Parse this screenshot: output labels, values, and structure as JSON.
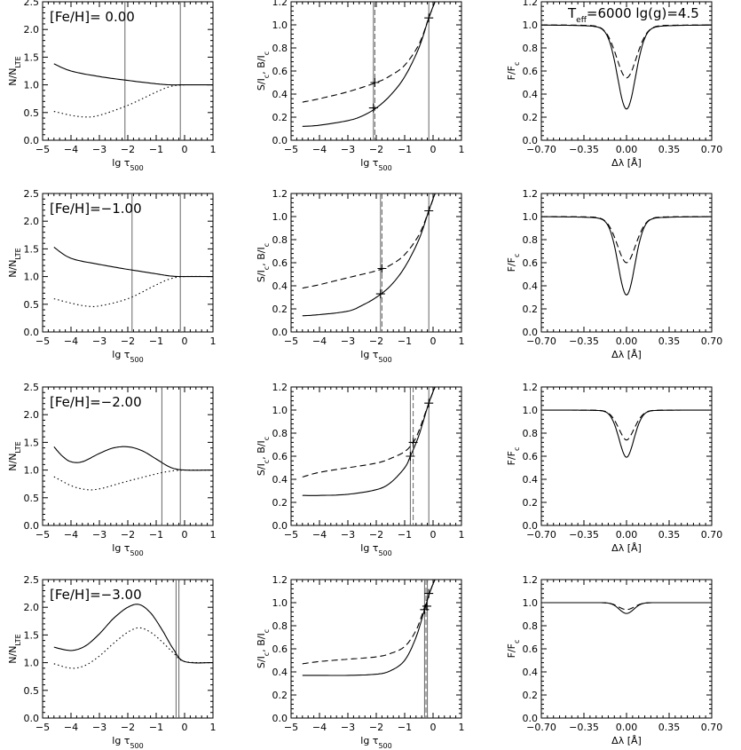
{
  "figure": {
    "top_label": "T_eff=6000  lg(g)=4.5"
  },
  "chart_data": [
    {
      "type": "line",
      "panel": "N/NLTE vs lg tau500",
      "annotation": "[Fe/H]= 0.00",
      "xlabel": "lg τ500",
      "ylabel": "N/N_LTE",
      "xlim": [
        -5,
        1
      ],
      "ylim": [
        0,
        2.5
      ],
      "xticks": [
        "-5",
        "-4",
        "-3",
        "-2",
        "-1",
        "0",
        "1"
      ],
      "yticks": [
        "0.0",
        "0.5",
        "1.0",
        "1.5",
        "2.0",
        "2.5"
      ],
      "vlines": [
        -2.1,
        -0.15
      ],
      "series": [
        {
          "style": "solid",
          "x": [
            -4.6,
            -4.0,
            -3.0,
            -2.0,
            -1.0,
            -0.5,
            0.0,
            1.0
          ],
          "y": [
            1.38,
            1.25,
            1.15,
            1.08,
            1.02,
            1.0,
            1.0,
            1.0
          ]
        },
        {
          "style": "dotted",
          "x": [
            -4.6,
            -4.0,
            -3.5,
            -3.0,
            -2.0,
            -1.0,
            -0.5,
            0.0,
            1.0
          ],
          "y": [
            0.52,
            0.45,
            0.42,
            0.45,
            0.63,
            0.87,
            0.97,
            1.0,
            1.0
          ]
        }
      ]
    },
    {
      "type": "line",
      "panel": "source function vs lg tau500",
      "xlabel": "lg τ500",
      "ylabel": "S/I_c, B/I_c",
      "xlim": [
        -5,
        1
      ],
      "ylim": [
        0,
        1.2
      ],
      "xticks": [
        "-5",
        "-4",
        "-3",
        "-2",
        "-1",
        "0",
        "1"
      ],
      "yticks": [
        "0.0",
        "0.2",
        "0.4",
        "0.6",
        "0.8",
        "1.0",
        "1.2"
      ],
      "vlines": [
        -2.1,
        -0.15
      ],
      "dashed_vlines": [
        -2.05
      ],
      "markers": [
        {
          "x": -2.1,
          "y": 0.28
        },
        {
          "x": -2.05,
          "y": 0.5
        },
        {
          "x": -0.15,
          "y": 1.06
        }
      ],
      "series": [
        {
          "style": "solid",
          "x": [
            -4.6,
            -4.0,
            -3.0,
            -2.5,
            -2.0,
            -1.5,
            -1.0,
            -0.5,
            -0.15,
            0.1
          ],
          "y": [
            0.12,
            0.13,
            0.17,
            0.21,
            0.28,
            0.39,
            0.55,
            0.8,
            1.06,
            1.22
          ]
        },
        {
          "style": "dashed",
          "x": [
            -4.6,
            -4.0,
            -3.0,
            -2.0,
            -1.5,
            -1.0,
            -0.5,
            -0.15,
            0.1
          ],
          "y": [
            0.33,
            0.36,
            0.42,
            0.5,
            0.56,
            0.65,
            0.83,
            1.06,
            1.22
          ]
        }
      ]
    },
    {
      "type": "line",
      "panel": "line profile F/Fc vs delta lambda",
      "xlabel": "Δλ [Å]",
      "ylabel": "F/F_c",
      "xlim": [
        -0.7,
        0.7
      ],
      "ylim": [
        0,
        1.2
      ],
      "xticks": [
        "-0.70",
        "-0.35",
        "0.00",
        "0.35",
        "0.70"
      ],
      "yticks": [
        "0.0",
        "0.2",
        "0.4",
        "0.6",
        "0.8",
        "1.0",
        "1.2"
      ],
      "series": [
        {
          "style": "solid",
          "profile": {
            "depth": 0.73,
            "core": 0.075,
            "wing": 0.009
          }
        },
        {
          "style": "dashed",
          "profile": {
            "depth": 0.46,
            "core": 0.085,
            "wing": 0.007
          }
        }
      ]
    },
    {
      "type": "line",
      "panel": "N/NLTE vs lg tau500",
      "annotation": "[Fe/H]=-1.00",
      "xlabel": "lg τ500",
      "ylabel": "N/N_LTE",
      "xlim": [
        -5,
        1
      ],
      "ylim": [
        0,
        2.5
      ],
      "xticks": [
        "-5",
        "-4",
        "-3",
        "-2",
        "-1",
        "0",
        "1"
      ],
      "yticks": [
        "0.0",
        "0.5",
        "1.0",
        "1.5",
        "2.0",
        "2.5"
      ],
      "vlines": [
        -1.85,
        -0.15
      ],
      "series": [
        {
          "style": "solid",
          "x": [
            -4.6,
            -4.0,
            -3.0,
            -2.0,
            -1.0,
            -0.5,
            0.0,
            1.0
          ],
          "y": [
            1.53,
            1.33,
            1.22,
            1.13,
            1.05,
            1.01,
            1.0,
            1.0
          ]
        },
        {
          "style": "dotted",
          "x": [
            -4.6,
            -4.0,
            -3.5,
            -3.0,
            -2.0,
            -1.0,
            -0.5,
            0.0,
            1.0
          ],
          "y": [
            0.6,
            0.52,
            0.47,
            0.47,
            0.6,
            0.85,
            0.96,
            1.0,
            1.0
          ]
        }
      ]
    },
    {
      "type": "line",
      "panel": "source function vs lg tau500",
      "xlabel": "lg τ500",
      "ylabel": "S/I_c, B/I_c",
      "xlim": [
        -5,
        1
      ],
      "ylim": [
        0,
        1.2
      ],
      "xticks": [
        "-5",
        "-4",
        "-3",
        "-2",
        "-1",
        "0",
        "1"
      ],
      "yticks": [
        "0.0",
        "0.2",
        "0.4",
        "0.6",
        "0.8",
        "1.0",
        "1.2"
      ],
      "vlines": [
        -1.85,
        -0.15
      ],
      "dashed_vlines": [
        -1.8
      ],
      "markers": [
        {
          "x": -1.85,
          "y": 0.33
        },
        {
          "x": -1.8,
          "y": 0.55
        },
        {
          "x": -0.15,
          "y": 1.05
        }
      ],
      "series": [
        {
          "style": "solid",
          "x": [
            -4.6,
            -4.0,
            -3.0,
            -2.5,
            -2.0,
            -1.5,
            -1.0,
            -0.5,
            -0.15,
            0.1
          ],
          "y": [
            0.14,
            0.15,
            0.18,
            0.23,
            0.3,
            0.4,
            0.56,
            0.8,
            1.05,
            1.22
          ]
        },
        {
          "style": "dashed",
          "x": [
            -4.6,
            -4.0,
            -3.0,
            -2.0,
            -1.5,
            -1.0,
            -0.5,
            -0.15,
            0.1
          ],
          "y": [
            0.38,
            0.41,
            0.47,
            0.53,
            0.58,
            0.67,
            0.84,
            1.05,
            1.22
          ]
        }
      ]
    },
    {
      "type": "line",
      "panel": "line profile F/Fc vs delta lambda",
      "xlabel": "Δλ [Å]",
      "ylabel": "F/F_c",
      "xlim": [
        -0.7,
        0.7
      ],
      "ylim": [
        0,
        1.2
      ],
      "xticks": [
        "-0.70",
        "-0.35",
        "0.00",
        "0.35",
        "0.70"
      ],
      "yticks": [
        "0.0",
        "0.2",
        "0.4",
        "0.6",
        "0.8",
        "1.0",
        "1.2"
      ],
      "series": [
        {
          "style": "solid",
          "profile": {
            "depth": 0.68,
            "core": 0.07,
            "wing": 0.007
          }
        },
        {
          "style": "dashed",
          "profile": {
            "depth": 0.4,
            "core": 0.08,
            "wing": 0.005
          }
        }
      ]
    },
    {
      "type": "line",
      "panel": "N/NLTE vs lg tau500",
      "annotation": "[Fe/H]=-2.00",
      "xlabel": "lg τ500",
      "ylabel": "N/N_LTE",
      "xlim": [
        -5,
        1
      ],
      "ylim": [
        0,
        2.5
      ],
      "xticks": [
        "-5",
        "-4",
        "-3",
        "-2",
        "-1",
        "0",
        "1"
      ],
      "yticks": [
        "0.0",
        "0.5",
        "1.0",
        "1.5",
        "2.0",
        "2.5"
      ],
      "vlines": [
        -0.8,
        -0.15
      ],
      "series": [
        {
          "style": "solid",
          "x": [
            -4.6,
            -4.3,
            -4.0,
            -3.6,
            -3.0,
            -2.5,
            -2.0,
            -1.5,
            -1.0,
            -0.5,
            0.0,
            1.0
          ],
          "y": [
            1.42,
            1.25,
            1.15,
            1.15,
            1.3,
            1.4,
            1.42,
            1.35,
            1.2,
            1.05,
            1.0,
            1.0
          ]
        },
        {
          "style": "dotted",
          "x": [
            -4.6,
            -4.0,
            -3.5,
            -3.0,
            -2.0,
            -1.0,
            -0.5,
            0.0,
            1.0
          ],
          "y": [
            0.88,
            0.72,
            0.65,
            0.66,
            0.8,
            0.93,
            0.98,
            1.0,
            1.0
          ]
        }
      ]
    },
    {
      "type": "line",
      "panel": "source function vs lg tau500",
      "xlabel": "lg τ500",
      "ylabel": "S/I_c, B/I_c",
      "xlim": [
        -5,
        1
      ],
      "ylim": [
        0,
        1.2
      ],
      "xticks": [
        "-5",
        "-4",
        "-3",
        "-2",
        "-1",
        "0",
        "1"
      ],
      "yticks": [
        "0.0",
        "0.2",
        "0.4",
        "0.6",
        "0.8",
        "1.0",
        "1.2"
      ],
      "vlines": [
        -0.8,
        -0.15
      ],
      "dashed_vlines": [
        -0.7
      ],
      "markers": [
        {
          "x": -0.8,
          "y": 0.6
        },
        {
          "x": -0.7,
          "y": 0.72
        },
        {
          "x": -0.15,
          "y": 1.06
        }
      ],
      "series": [
        {
          "style": "solid",
          "x": [
            -4.6,
            -4.0,
            -3.0,
            -2.0,
            -1.5,
            -1.0,
            -0.8,
            -0.5,
            -0.15,
            0.1
          ],
          "y": [
            0.26,
            0.26,
            0.27,
            0.31,
            0.37,
            0.5,
            0.6,
            0.78,
            1.06,
            1.22
          ]
        },
        {
          "style": "dashed",
          "x": [
            -4.6,
            -4.0,
            -3.0,
            -2.0,
            -1.5,
            -1.0,
            -0.7,
            -0.5,
            -0.15,
            0.1
          ],
          "y": [
            0.42,
            0.46,
            0.5,
            0.54,
            0.58,
            0.64,
            0.72,
            0.82,
            1.06,
            1.22
          ]
        }
      ]
    },
    {
      "type": "line",
      "panel": "line profile F/Fc vs delta lambda",
      "xlabel": "Δλ [Å]",
      "ylabel": "F/F_c",
      "xlim": [
        -0.7,
        0.7
      ],
      "ylim": [
        0,
        1.2
      ],
      "xticks": [
        "-0.70",
        "-0.35",
        "0.00",
        "0.35",
        "0.70"
      ],
      "yticks": [
        "0.0",
        "0.2",
        "0.4",
        "0.6",
        "0.8",
        "1.0",
        "1.2"
      ],
      "series": [
        {
          "style": "solid",
          "profile": {
            "depth": 0.41,
            "core": 0.065,
            "wing": 0.003
          }
        },
        {
          "style": "dashed",
          "profile": {
            "depth": 0.26,
            "core": 0.07,
            "wing": 0.002
          }
        }
      ]
    },
    {
      "type": "line",
      "panel": "N/NLTE vs lg tau500",
      "annotation": "[Fe/H]=-3.00",
      "xlabel": "lg τ500",
      "ylabel": "N/N_LTE",
      "xlim": [
        -5,
        1
      ],
      "ylim": [
        0,
        2.5
      ],
      "xticks": [
        "-5",
        "-4",
        "-3",
        "-2",
        "-1",
        "0",
        "1"
      ],
      "yticks": [
        "0.0",
        "0.5",
        "1.0",
        "1.5",
        "2.0",
        "2.5"
      ],
      "vlines": [
        -0.3,
        -0.2
      ],
      "series": [
        {
          "style": "solid",
          "x": [
            -4.6,
            -4.0,
            -3.5,
            -3.0,
            -2.5,
            -2.0,
            -1.6,
            -1.2,
            -0.8,
            -0.4,
            0.0,
            1.0
          ],
          "y": [
            1.28,
            1.22,
            1.3,
            1.52,
            1.8,
            2.0,
            2.05,
            1.9,
            1.6,
            1.25,
            1.02,
            1.0
          ]
        },
        {
          "style": "dotted",
          "x": [
            -4.6,
            -4.0,
            -3.5,
            -3.0,
            -2.5,
            -2.0,
            -1.6,
            -1.2,
            -0.8,
            -0.4,
            0.0,
            1.0
          ],
          "y": [
            0.98,
            0.9,
            0.95,
            1.12,
            1.35,
            1.55,
            1.63,
            1.55,
            1.38,
            1.18,
            1.02,
            1.0
          ]
        }
      ]
    },
    {
      "type": "line",
      "panel": "source function vs lg tau500",
      "xlabel": "lg τ500",
      "ylabel": "S/I_c, B/I_c",
      "xlim": [
        -5,
        1
      ],
      "ylim": [
        0,
        1.2
      ],
      "xticks": [
        "-5",
        "-4",
        "-3",
        "-2",
        "-1",
        "0",
        "1"
      ],
      "yticks": [
        "0.0",
        "0.2",
        "0.4",
        "0.6",
        "0.8",
        "1.0",
        "1.2"
      ],
      "vlines": [
        -0.3,
        -0.2
      ],
      "dashed_vlines": [
        -0.25
      ],
      "markers": [
        {
          "x": -0.3,
          "y": 0.94
        },
        {
          "x": -0.22,
          "y": 0.97
        },
        {
          "x": -0.15,
          "y": 1.08
        }
      ],
      "series": [
        {
          "style": "solid",
          "x": [
            -4.6,
            -4.0,
            -3.0,
            -2.0,
            -1.5,
            -1.0,
            -0.6,
            -0.3,
            -0.1,
            0.1
          ],
          "y": [
            0.37,
            0.37,
            0.37,
            0.38,
            0.41,
            0.5,
            0.7,
            0.94,
            1.1,
            1.22
          ]
        },
        {
          "style": "dashed",
          "x": [
            -4.6,
            -4.0,
            -3.0,
            -2.0,
            -1.5,
            -1.0,
            -0.6,
            -0.3,
            -0.1,
            0.1
          ],
          "y": [
            0.47,
            0.49,
            0.51,
            0.53,
            0.56,
            0.62,
            0.76,
            0.96,
            1.1,
            1.22
          ]
        }
      ]
    },
    {
      "type": "line",
      "panel": "line profile F/Fc vs delta lambda",
      "xlabel": "Δλ [Å]",
      "ylabel": "F/F_c",
      "xlim": [
        -0.7,
        0.7
      ],
      "ylim": [
        0,
        1.2
      ],
      "xticks": [
        "-0.70",
        "-0.35",
        "0.00",
        "0.35",
        "0.70"
      ],
      "yticks": [
        "0.0",
        "0.2",
        "0.4",
        "0.6",
        "0.8",
        "1.0",
        "1.2"
      ],
      "series": [
        {
          "style": "solid",
          "profile": {
            "depth": 0.11,
            "core": 0.06,
            "wing": 0.0
          }
        },
        {
          "style": "dashed",
          "profile": {
            "depth": 0.07,
            "core": 0.065,
            "wing": 0.0
          }
        }
      ]
    }
  ]
}
